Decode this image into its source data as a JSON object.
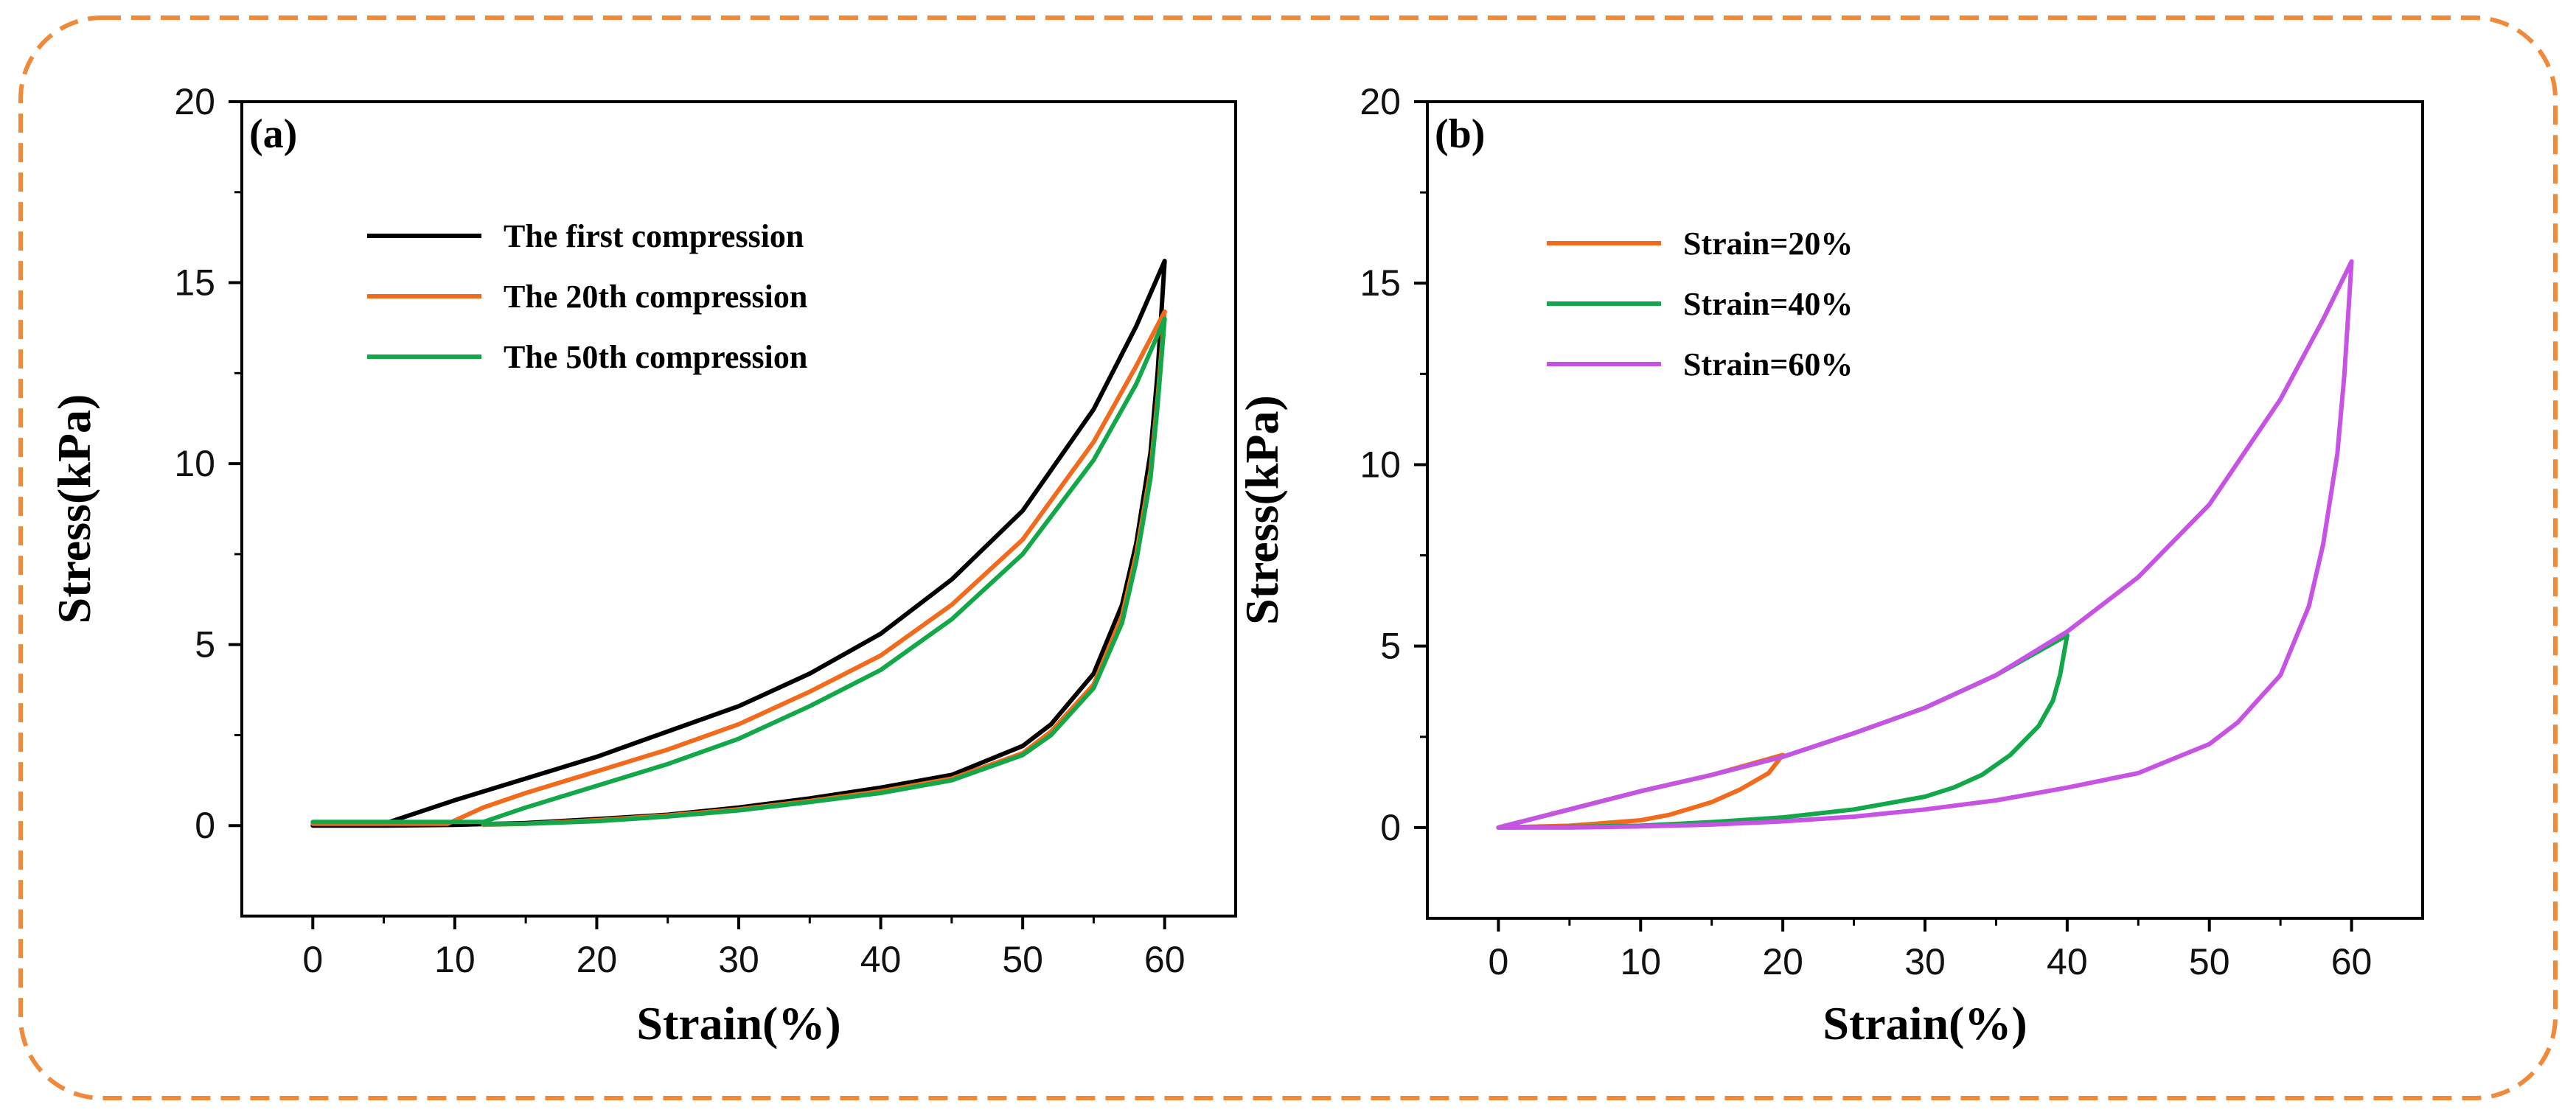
{
  "chart_data": [
    {
      "type": "line",
      "panel_label": "(a)",
      "xlabel": "Strain(%)",
      "ylabel": "Stress(kPa)",
      "xlim": [
        -5,
        65
      ],
      "ylim": [
        -2.5,
        20
      ],
      "xticks": [
        0,
        10,
        20,
        30,
        40,
        50,
        60
      ],
      "yticks": [
        0,
        5,
        10,
        15,
        20
      ],
      "legend_position": "upper-left",
      "series": [
        {
          "name": "The first compression",
          "color": "#000000",
          "loading": [
            [
              0,
              0
            ],
            [
              5,
              0.05
            ],
            [
              10,
              0.7
            ],
            [
              15,
              1.3
            ],
            [
              20,
              1.9
            ],
            [
              25,
              2.6
            ],
            [
              30,
              3.3
            ],
            [
              35,
              4.2
            ],
            [
              40,
              5.3
            ],
            [
              45,
              6.8
            ],
            [
              50,
              8.7
            ],
            [
              55,
              11.5
            ],
            [
              58,
              13.8
            ],
            [
              60,
              15.6
            ]
          ],
          "unloading": [
            [
              60,
              15.6
            ],
            [
              59.5,
              12.5
            ],
            [
              59,
              10.3
            ],
            [
              58,
              7.8
            ],
            [
              57,
              6.1
            ],
            [
              55,
              4.2
            ],
            [
              52,
              2.8
            ],
            [
              50,
              2.2
            ],
            [
              45,
              1.4
            ],
            [
              40,
              1.05
            ],
            [
              35,
              0.75
            ],
            [
              30,
              0.5
            ],
            [
              25,
              0.3
            ],
            [
              20,
              0.18
            ],
            [
              15,
              0.07
            ],
            [
              10,
              0.02
            ],
            [
              5,
              0
            ],
            [
              0,
              0
            ]
          ]
        },
        {
          "name": "The 20th compression",
          "color": "#f26a1b",
          "loading": [
            [
              0,
              0.05
            ],
            [
              5,
              0.05
            ],
            [
              9.5,
              0.05
            ],
            [
              12,
              0.5
            ],
            [
              15,
              0.9
            ],
            [
              20,
              1.5
            ],
            [
              25,
              2.1
            ],
            [
              30,
              2.8
            ],
            [
              35,
              3.7
            ],
            [
              40,
              4.7
            ],
            [
              45,
              6.1
            ],
            [
              50,
              7.9
            ],
            [
              55,
              10.6
            ],
            [
              58,
              12.7
            ],
            [
              60,
              14.2
            ]
          ],
          "unloading": [
            [
              60,
              14.2
            ],
            [
              59.5,
              11.8
            ],
            [
              59,
              9.8
            ],
            [
              58,
              7.5
            ],
            [
              57,
              5.8
            ],
            [
              55,
              3.9
            ],
            [
              52,
              2.6
            ],
            [
              50,
              2.0
            ],
            [
              45,
              1.3
            ],
            [
              40,
              0.95
            ],
            [
              35,
              0.68
            ],
            [
              30,
              0.45
            ],
            [
              25,
              0.28
            ],
            [
              20,
              0.15
            ],
            [
              15,
              0.05
            ],
            [
              12,
              0.02
            ]
          ]
        },
        {
          "name": "The 50th compression",
          "color": "#12a84a",
          "loading": [
            [
              0,
              0.1
            ],
            [
              5,
              0.1
            ],
            [
              12,
              0.1
            ],
            [
              15,
              0.5
            ],
            [
              20,
              1.1
            ],
            [
              25,
              1.7
            ],
            [
              30,
              2.4
            ],
            [
              35,
              3.3
            ],
            [
              40,
              4.3
            ],
            [
              45,
              5.7
            ],
            [
              50,
              7.5
            ],
            [
              55,
              10.1
            ],
            [
              58,
              12.2
            ],
            [
              60,
              14.0
            ]
          ],
          "unloading": [
            [
              60,
              14.0
            ],
            [
              59.5,
              11.6
            ],
            [
              59,
              9.6
            ],
            [
              58,
              7.3
            ],
            [
              57,
              5.6
            ],
            [
              55,
              3.8
            ],
            [
              52,
              2.5
            ],
            [
              50,
              1.95
            ],
            [
              45,
              1.25
            ],
            [
              40,
              0.9
            ],
            [
              35,
              0.65
            ],
            [
              30,
              0.42
            ],
            [
              25,
              0.25
            ],
            [
              20,
              0.12
            ],
            [
              15,
              0.05
            ],
            [
              12,
              0.05
            ]
          ]
        }
      ]
    },
    {
      "type": "line",
      "panel_label": "(b)",
      "xlabel": "Strain(%)",
      "ylabel": "Stress(kPa)",
      "xlim": [
        -5,
        65
      ],
      "ylim": [
        -2.5,
        20
      ],
      "xticks": [
        0,
        10,
        20,
        30,
        40,
        50,
        60
      ],
      "yticks": [
        0,
        5,
        10,
        15,
        20
      ],
      "legend_position": "upper-left",
      "series": [
        {
          "name": "Strain=20%",
          "color": "#f26a1b",
          "loading": [
            [
              0,
              0
            ],
            [
              5,
              0.5
            ],
            [
              10,
              1.0
            ],
            [
              15,
              1.45
            ],
            [
              20,
              2.0
            ]
          ],
          "unloading": [
            [
              20,
              2.0
            ],
            [
              19,
              1.5
            ],
            [
              17,
              1.05
            ],
            [
              15,
              0.7
            ],
            [
              12,
              0.35
            ],
            [
              10,
              0.2
            ],
            [
              5,
              0.05
            ],
            [
              0,
              0
            ]
          ]
        },
        {
          "name": "Strain=40%",
          "color": "#12a84a",
          "loading": [
            [
              0,
              0
            ],
            [
              5,
              0.5
            ],
            [
              10,
              1.0
            ],
            [
              15,
              1.45
            ],
            [
              20,
              1.95
            ],
            [
              25,
              2.6
            ],
            [
              30,
              3.3
            ],
            [
              35,
              4.2
            ],
            [
              40,
              5.3
            ]
          ],
          "unloading": [
            [
              40,
              5.3
            ],
            [
              39.5,
              4.2
            ],
            [
              39,
              3.5
            ],
            [
              38,
              2.8
            ],
            [
              36,
              2.0
            ],
            [
              34,
              1.45
            ],
            [
              32,
              1.1
            ],
            [
              30,
              0.85
            ],
            [
              25,
              0.5
            ],
            [
              20,
              0.28
            ],
            [
              15,
              0.15
            ],
            [
              10,
              0.05
            ],
            [
              5,
              0.02
            ],
            [
              0,
              0
            ]
          ]
        },
        {
          "name": "Strain=60%",
          "color": "#c653e3",
          "loading": [
            [
              0,
              0
            ],
            [
              5,
              0.5
            ],
            [
              10,
              1.0
            ],
            [
              15,
              1.45
            ],
            [
              20,
              1.95
            ],
            [
              25,
              2.6
            ],
            [
              30,
              3.3
            ],
            [
              35,
              4.2
            ],
            [
              40,
              5.4
            ],
            [
              45,
              6.9
            ],
            [
              50,
              8.9
            ],
            [
              55,
              11.8
            ],
            [
              58,
              14.0
            ],
            [
              60,
              15.6
            ]
          ],
          "unloading": [
            [
              60,
              15.6
            ],
            [
              59.5,
              12.5
            ],
            [
              59,
              10.3
            ],
            [
              58,
              7.8
            ],
            [
              57,
              6.1
            ],
            [
              55,
              4.2
            ],
            [
              52,
              2.9
            ],
            [
              50,
              2.3
            ],
            [
              45,
              1.5
            ],
            [
              40,
              1.1
            ],
            [
              35,
              0.75
            ],
            [
              30,
              0.5
            ],
            [
              25,
              0.3
            ],
            [
              20,
              0.17
            ],
            [
              15,
              0.08
            ],
            [
              10,
              0.03
            ],
            [
              5,
              0
            ],
            [
              0,
              0
            ]
          ]
        }
      ]
    }
  ]
}
